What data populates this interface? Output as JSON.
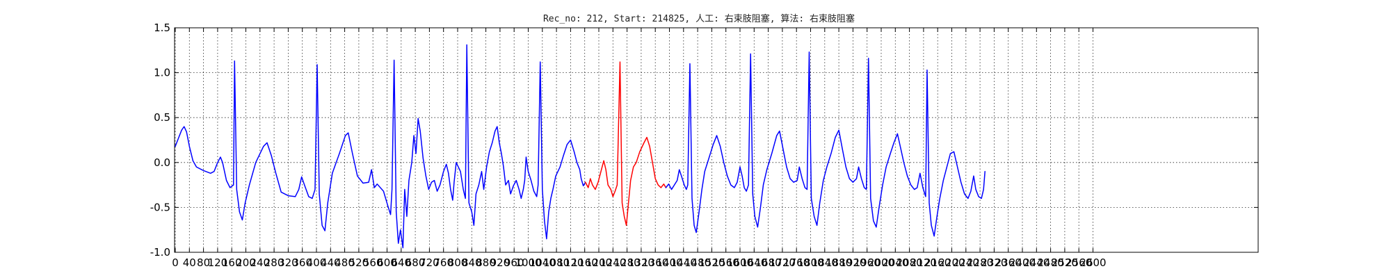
{
  "chart_data": {
    "type": "line",
    "title": "Rec_no: 212, Start: 214825, 人工: 右束肢阻塞, 算法: 右束肢阻塞",
    "xlim": [
      0,
      4000
    ],
    "ylim": [
      -1.0,
      1.5
    ],
    "x_ticks": [
      0,
      40,
      80,
      120,
      160,
      200,
      240,
      280,
      320,
      360,
      400,
      440,
      480,
      520,
      560,
      600,
      640,
      680,
      720,
      760,
      800,
      840,
      880,
      920,
      960,
      1000,
      1040,
      1080,
      1120,
      1160,
      1200,
      1240,
      1280,
      1320,
      1360,
      1400,
      1440,
      1480,
      1520,
      1560,
      1600,
      1640,
      1680,
      1720,
      1760,
      1800,
      1840,
      1880,
      1920,
      1960,
      2000,
      2040,
      2080,
      2120,
      2160,
      2200,
      2240,
      2280,
      2320,
      2360,
      2400,
      2440,
      2480,
      2520,
      2560,
      2600
    ],
    "y_ticks": [
      -1.0,
      -0.5,
      0.0,
      0.5,
      1.0,
      1.5
    ],
    "grid": true,
    "colors": {
      "main": "#0000ff",
      "highlight": "#ff0000"
    },
    "series": [
      {
        "color": "main",
        "points": [
          [
            0,
            0.18
          ],
          [
            10,
            0.28
          ],
          [
            18,
            0.36
          ],
          [
            25,
            0.4
          ],
          [
            32,
            0.34
          ],
          [
            40,
            0.18
          ],
          [
            50,
            0.02
          ],
          [
            60,
            -0.05
          ],
          [
            80,
            -0.09
          ],
          [
            100,
            -0.12
          ],
          [
            110,
            -0.1
          ],
          [
            120,
            0.0
          ],
          [
            128,
            0.06
          ],
          [
            134,
            0.0
          ],
          [
            145,
            -0.2
          ],
          [
            155,
            -0.28
          ],
          [
            165,
            -0.25
          ],
          [
            168,
            1.13
          ],
          [
            174,
            -0.3
          ],
          [
            182,
            -0.55
          ],
          [
            190,
            -0.64
          ],
          [
            198,
            -0.45
          ],
          [
            210,
            -0.25
          ],
          [
            228,
            0.0
          ],
          [
            250,
            0.18
          ],
          [
            260,
            0.22
          ],
          [
            272,
            0.08
          ],
          [
            285,
            -0.12
          ],
          [
            300,
            -0.33
          ],
          [
            320,
            -0.37
          ],
          [
            340,
            -0.38
          ],
          [
            350,
            -0.3
          ],
          [
            358,
            -0.16
          ],
          [
            366,
            -0.25
          ],
          [
            378,
            -0.38
          ],
          [
            388,
            -0.4
          ],
          [
            396,
            -0.3
          ],
          [
            402,
            1.09
          ],
          [
            408,
            -0.35
          ],
          [
            416,
            -0.7
          ],
          [
            424,
            -0.76
          ],
          [
            432,
            -0.45
          ],
          [
            445,
            -0.12
          ],
          [
            465,
            0.1
          ],
          [
            482,
            0.3
          ],
          [
            490,
            0.33
          ],
          [
            502,
            0.1
          ],
          [
            516,
            -0.15
          ],
          [
            532,
            -0.23
          ],
          [
            548,
            -0.22
          ],
          [
            556,
            -0.08
          ],
          [
            564,
            -0.28
          ],
          [
            572,
            -0.24
          ],
          [
            590,
            -0.32
          ],
          [
            602,
            -0.48
          ],
          [
            610,
            -0.58
          ],
          [
            614,
            -0.3
          ],
          [
            620,
            1.14
          ],
          [
            626,
            -0.55
          ],
          [
            632,
            -0.9
          ],
          [
            638,
            -0.75
          ],
          [
            645,
            -0.95
          ],
          [
            650,
            -0.3
          ],
          [
            656,
            -0.6
          ],
          [
            662,
            -0.2
          ],
          [
            670,
            0.0
          ],
          [
            676,
            0.3
          ],
          [
            682,
            0.1
          ],
          [
            688,
            0.49
          ],
          [
            694,
            0.35
          ],
          [
            702,
            0.05
          ],
          [
            710,
            -0.15
          ],
          [
            718,
            -0.3
          ],
          [
            726,
            -0.22
          ],
          [
            734,
            -0.2
          ],
          [
            742,
            -0.32
          ],
          [
            750,
            -0.25
          ],
          [
            760,
            -0.1
          ],
          [
            768,
            -0.02
          ],
          [
            774,
            -0.12
          ],
          [
            780,
            -0.3
          ],
          [
            786,
            -0.42
          ],
          [
            790,
            -0.22
          ],
          [
            796,
            0.0
          ],
          [
            808,
            -0.1
          ],
          [
            816,
            -0.3
          ],
          [
            822,
            -0.4
          ],
          [
            826,
            1.31
          ],
          [
            832,
            -0.45
          ],
          [
            840,
            -0.55
          ],
          [
            846,
            -0.7
          ],
          [
            852,
            -0.35
          ],
          [
            860,
            -0.25
          ],
          [
            868,
            -0.1
          ],
          [
            874,
            -0.3
          ],
          [
            882,
            -0.05
          ],
          [
            890,
            0.12
          ],
          [
            898,
            0.22
          ],
          [
            906,
            0.35
          ],
          [
            912,
            0.4
          ],
          [
            918,
            0.22
          ],
          [
            924,
            0.1
          ],
          [
            930,
            -0.05
          ],
          [
            936,
            -0.25
          ],
          [
            944,
            -0.2
          ],
          [
            950,
            -0.35
          ],
          [
            958,
            -0.26
          ],
          [
            966,
            -0.2
          ],
          [
            974,
            -0.3
          ],
          [
            980,
            -0.4
          ],
          [
            986,
            -0.3
          ],
          [
            990,
            -0.2
          ],
          [
            994,
            0.06
          ],
          [
            1000,
            -0.1
          ],
          [
            1008,
            -0.2
          ],
          [
            1016,
            -0.32
          ],
          [
            1024,
            -0.38
          ],
          [
            1028,
            -0.25
          ],
          [
            1034,
            1.12
          ],
          [
            1040,
            -0.3
          ],
          [
            1046,
            -0.65
          ],
          [
            1052,
            -0.85
          ],
          [
            1058,
            -0.55
          ],
          [
            1064,
            -0.4
          ],
          [
            1070,
            -0.3
          ],
          [
            1078,
            -0.15
          ],
          [
            1090,
            -0.05
          ],
          [
            1100,
            0.08
          ],
          [
            1110,
            0.2
          ],
          [
            1120,
            0.25
          ],
          [
            1130,
            0.12
          ],
          [
            1138,
            0.0
          ],
          [
            1146,
            -0.08
          ],
          [
            1150,
            -0.18
          ],
          [
            1156,
            -0.26
          ],
          [
            1162,
            -0.22
          ]
        ]
      },
      {
        "color": "highlight",
        "points": [
          [
            1162,
            -0.22
          ],
          [
            1170,
            -0.28
          ],
          [
            1176,
            -0.18
          ],
          [
            1182,
            -0.25
          ],
          [
            1190,
            -0.3
          ],
          [
            1198,
            -0.22
          ],
          [
            1206,
            -0.1
          ],
          [
            1214,
            0.02
          ],
          [
            1220,
            -0.08
          ],
          [
            1226,
            -0.25
          ],
          [
            1234,
            -0.3
          ],
          [
            1240,
            -0.38
          ],
          [
            1246,
            -0.32
          ],
          [
            1252,
            -0.25
          ],
          [
            1260,
            1.12
          ],
          [
            1266,
            -0.45
          ],
          [
            1272,
            -0.6
          ],
          [
            1278,
            -0.7
          ],
          [
            1284,
            -0.45
          ],
          [
            1290,
            -0.2
          ],
          [
            1298,
            -0.05
          ],
          [
            1306,
            0.0
          ],
          [
            1316,
            0.12
          ],
          [
            1328,
            0.22
          ],
          [
            1336,
            0.28
          ],
          [
            1344,
            0.18
          ],
          [
            1352,
            0.0
          ],
          [
            1360,
            -0.18
          ],
          [
            1368,
            -0.25
          ],
          [
            1376,
            -0.28
          ],
          [
            1384,
            -0.24
          ],
          [
            1390,
            -0.28
          ]
        ]
      },
      {
        "color": "main",
        "points": [
          [
            1390,
            -0.28
          ],
          [
            1398,
            -0.24
          ],
          [
            1406,
            -0.3
          ],
          [
            1414,
            -0.25
          ],
          [
            1422,
            -0.2
          ],
          [
            1428,
            -0.08
          ],
          [
            1434,
            -0.15
          ],
          [
            1442,
            -0.25
          ],
          [
            1448,
            -0.3
          ],
          [
            1452,
            -0.25
          ],
          [
            1458,
            1.1
          ],
          [
            1464,
            -0.4
          ],
          [
            1470,
            -0.7
          ],
          [
            1476,
            -0.78
          ],
          [
            1484,
            -0.55
          ],
          [
            1492,
            -0.3
          ],
          [
            1500,
            -0.1
          ],
          [
            1512,
            0.05
          ],
          [
            1524,
            0.2
          ],
          [
            1534,
            0.3
          ],
          [
            1544,
            0.18
          ],
          [
            1554,
            0.0
          ],
          [
            1564,
            -0.15
          ],
          [
            1574,
            -0.25
          ],
          [
            1584,
            -0.28
          ],
          [
            1592,
            -0.22
          ],
          [
            1600,
            -0.05
          ],
          [
            1606,
            -0.15
          ],
          [
            1612,
            -0.28
          ],
          [
            1618,
            -0.32
          ],
          [
            1624,
            -0.25
          ],
          [
            1630,
            1.21
          ],
          [
            1636,
            -0.35
          ],
          [
            1642,
            -0.6
          ],
          [
            1650,
            -0.72
          ],
          [
            1658,
            -0.5
          ],
          [
            1666,
            -0.25
          ],
          [
            1676,
            -0.08
          ],
          [
            1690,
            0.1
          ],
          [
            1704,
            0.3
          ],
          [
            1712,
            0.35
          ],
          [
            1722,
            0.15
          ],
          [
            1732,
            -0.05
          ],
          [
            1742,
            -0.18
          ],
          [
            1752,
            -0.22
          ],
          [
            1762,
            -0.2
          ],
          [
            1768,
            -0.05
          ],
          [
            1776,
            -0.18
          ],
          [
            1784,
            -0.28
          ],
          [
            1790,
            -0.3
          ],
          [
            1796,
            1.23
          ],
          [
            1802,
            -0.4
          ],
          [
            1810,
            -0.6
          ],
          [
            1818,
            -0.7
          ],
          [
            1826,
            -0.45
          ],
          [
            1836,
            -0.2
          ],
          [
            1846,
            -0.05
          ],
          [
            1858,
            0.1
          ],
          [
            1870,
            0.28
          ],
          [
            1880,
            0.36
          ],
          [
            1890,
            0.15
          ],
          [
            1900,
            -0.05
          ],
          [
            1910,
            -0.18
          ],
          [
            1920,
            -0.22
          ],
          [
            1930,
            -0.18
          ],
          [
            1936,
            -0.05
          ],
          [
            1944,
            -0.18
          ],
          [
            1952,
            -0.28
          ],
          [
            1958,
            -0.3
          ],
          [
            1964,
            1.16
          ],
          [
            1970,
            -0.4
          ],
          [
            1978,
            -0.65
          ],
          [
            1986,
            -0.72
          ],
          [
            1994,
            -0.5
          ],
          [
            2004,
            -0.25
          ],
          [
            2014,
            -0.05
          ],
          [
            2026,
            0.1
          ],
          [
            2036,
            0.22
          ],
          [
            2046,
            0.32
          ],
          [
            2054,
            0.18
          ],
          [
            2064,
            0.0
          ],
          [
            2074,
            -0.15
          ],
          [
            2084,
            -0.25
          ],
          [
            2094,
            -0.3
          ],
          [
            2102,
            -0.28
          ],
          [
            2110,
            -0.12
          ],
          [
            2118,
            -0.28
          ],
          [
            2126,
            -0.38
          ],
          [
            2130,
            1.03
          ],
          [
            2136,
            -0.45
          ],
          [
            2142,
            -0.7
          ],
          [
            2150,
            -0.82
          ],
          [
            2158,
            -0.6
          ],
          [
            2166,
            -0.4
          ],
          [
            2176,
            -0.2
          ],
          [
            2186,
            -0.05
          ],
          [
            2196,
            0.1
          ],
          [
            2206,
            0.12
          ],
          [
            2216,
            -0.05
          ],
          [
            2226,
            -0.22
          ],
          [
            2236,
            -0.35
          ],
          [
            2246,
            -0.4
          ],
          [
            2254,
            -0.32
          ],
          [
            2262,
            -0.15
          ],
          [
            2268,
            -0.3
          ],
          [
            2276,
            -0.38
          ],
          [
            2284,
            -0.4
          ],
          [
            2290,
            -0.3
          ],
          [
            2294,
            -0.1
          ]
        ]
      }
    ]
  }
}
